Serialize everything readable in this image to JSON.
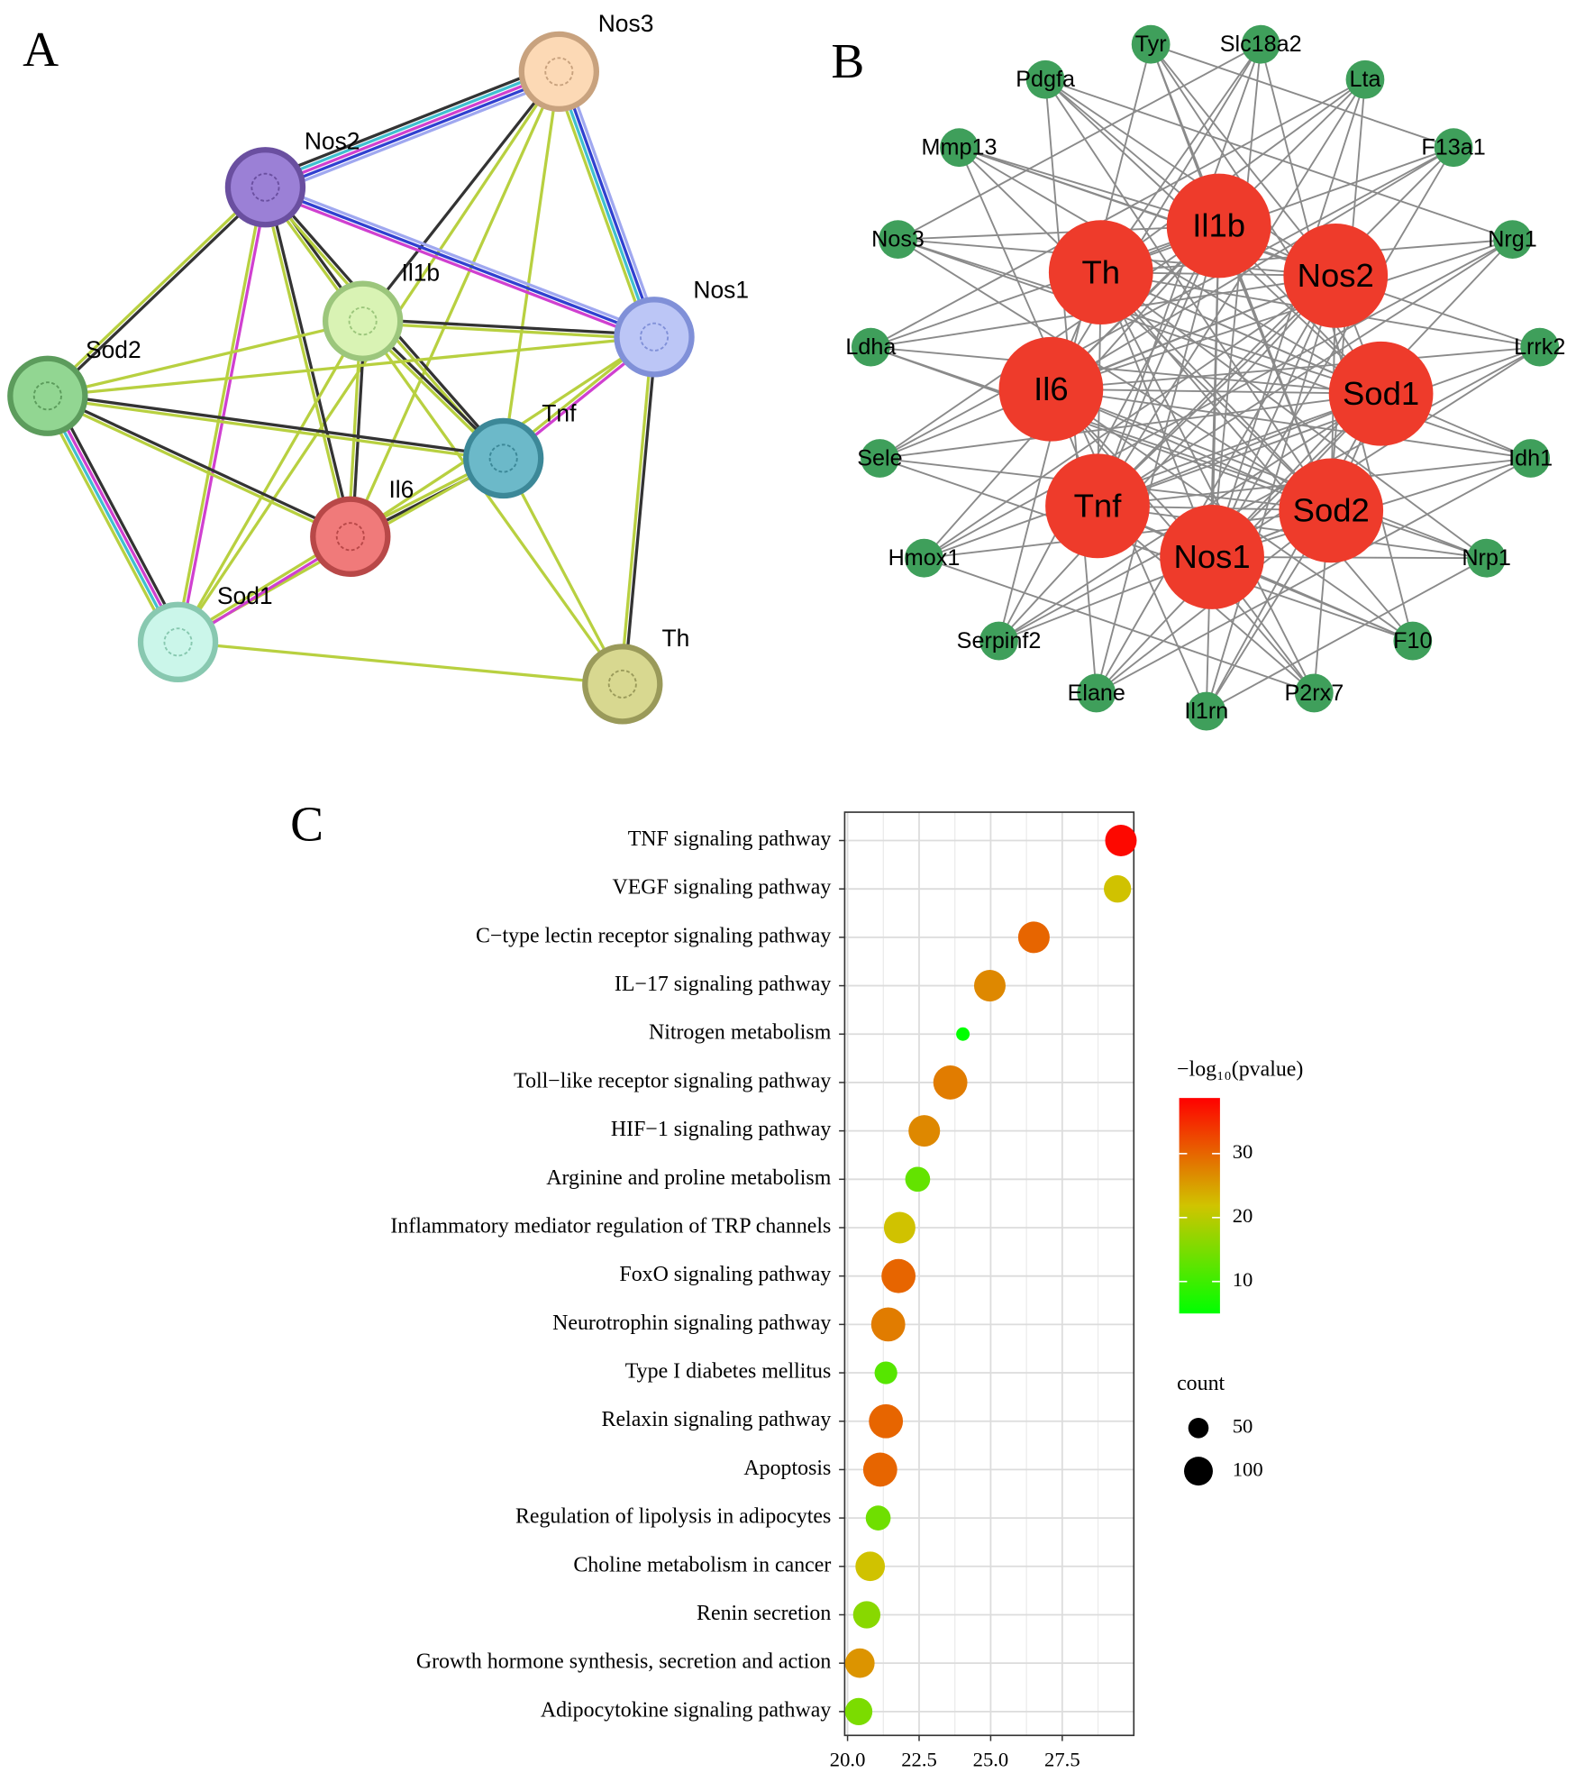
{
  "panel_labels": [
    "A",
    "B",
    "C"
  ],
  "network_a": {
    "nodes": [
      {
        "label": "Nos3",
        "color": "#fcd9b5",
        "border": "#c8a27e"
      },
      {
        "label": "Nos2",
        "color": "#9b80d6",
        "border": "#6a4fa0"
      },
      {
        "label": "Il1b",
        "color": "#d9f3b4",
        "border": "#9cc67c"
      },
      {
        "label": "Nos1",
        "color": "#bcc6f6",
        "border": "#8090d8"
      },
      {
        "label": "Sod2",
        "color": "#92d692",
        "border": "#5c9c5c"
      },
      {
        "label": "Tnf",
        "color": "#6cb9c9",
        "border": "#3c8898"
      },
      {
        "label": "Il6",
        "color": "#f07a7a",
        "border": "#b84848"
      },
      {
        "label": "Sod1",
        "color": "#cbf6ea",
        "border": "#88c8b0"
      },
      {
        "label": "Th",
        "color": "#d8d890",
        "border": "#9a9a5a"
      }
    ]
  },
  "network_b": {
    "hub_color": "#ee3b2b",
    "neighbor_color": "#3f9f5b",
    "hubs": [
      "Il1b",
      "Th",
      "Nos2",
      "Il6",
      "Sod1",
      "Tnf",
      "Sod2",
      "Nos1"
    ],
    "neighbors": [
      "Tyr",
      "Slc18a2",
      "Pdgfa",
      "Lta",
      "Mmp13",
      "F13a1",
      "Nos3",
      "Nrg1",
      "Ldha",
      "Lrrk2",
      "Sele",
      "Idh1",
      "Hmox1",
      "Nrp1",
      "Serpinf2",
      "F10",
      "Elane",
      "P2rx7",
      "Il1rn"
    ]
  },
  "chart_data": {
    "type": "dot",
    "categories": [
      "TNF signaling pathway",
      "VEGF signaling pathway",
      "C−type lectin receptor signaling pathway",
      "IL−17 signaling pathway",
      "Nitrogen metabolism",
      "Toll−like receptor signaling pathway",
      "HIF−1 signaling pathway",
      "Arginine and proline metabolism",
      "Inflammatory mediator regulation of TRP channels",
      "FoxO signaling pathway",
      "Neurotrophin signaling pathway",
      "Type I diabetes mellitus",
      "Relaxin signaling pathway",
      "Apoptosis",
      "Regulation of lipolysis in adipocytes",
      "Choline metabolism in cancer",
      "Renin secretion",
      "Growth hormone synthesis, secretion and action",
      "Adipocytokine signaling pathway"
    ],
    "values": [
      29.55,
      29.43,
      26.51,
      24.97,
      24.03,
      23.59,
      22.68,
      22.45,
      21.82,
      21.78,
      21.42,
      21.34,
      21.34,
      21.14,
      21.07,
      20.79,
      20.67,
      20.43,
      20.39
    ],
    "color_values": [
      38,
      22,
      30,
      27,
      5,
      28,
      27,
      13,
      22,
      30,
      28,
      12,
      30,
      30,
      14,
      22,
      16,
      26,
      15
    ],
    "counts": [
      120,
      90,
      120,
      120,
      22,
      140,
      120,
      75,
      120,
      140,
      140,
      62,
      140,
      140,
      75,
      105,
      90,
      105,
      90
    ],
    "xlim": [
      19.9,
      30.0
    ],
    "xticks": [
      {
        "value": 20,
        "label": "20.0"
      },
      {
        "value": 22.5,
        "label": "22.5"
      },
      {
        "value": 25,
        "label": "25.0"
      },
      {
        "value": 27.5,
        "label": "27.5"
      }
    ],
    "grid": true,
    "color_scale": {
      "title": "−log₁₀(pvalue)",
      "colors": [
        "#00ff00",
        "#d0c400",
        "#ff0000"
      ],
      "lim": [
        5,
        38.7
      ],
      "ticks": [
        10,
        20,
        30
      ]
    },
    "size_legend": {
      "title": "count",
      "values": [
        50,
        100
      ],
      "color": "#000000"
    }
  }
}
